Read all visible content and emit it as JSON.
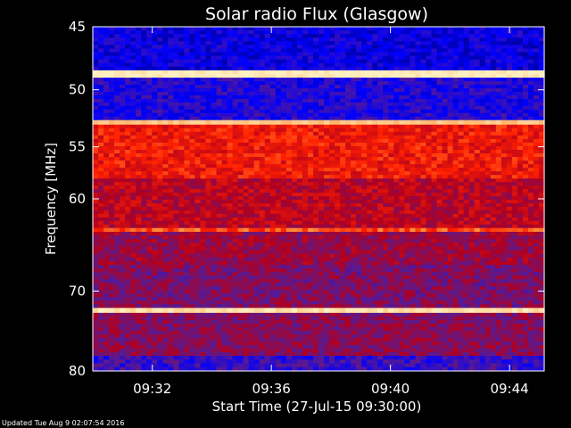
{
  "chart_data": {
    "type": "heatmap",
    "title": "Solar radio Flux (Glasgow)",
    "xlabel": "Start Time (27-Jul-15 09:30:00)",
    "ylabel": "Frequency [MHz]",
    "x_ticks": [
      "09:32",
      "09:36",
      "09:40",
      "09:44"
    ],
    "y_ticks": [
      "45",
      "50",
      "55",
      "60",
      "70",
      "80"
    ],
    "xlim": [
      "09:30:00",
      "09:45:10"
    ],
    "ylim_mhz": [
      45,
      80
    ],
    "y_scale": "log",
    "colormap": [
      "#000060",
      "#0000ff",
      "#5a1a90",
      "#b00020",
      "#ff2000",
      "#ff9a40",
      "#fff0c0"
    ],
    "bands": [
      {
        "from": 45,
        "to": 48.4,
        "level": 1
      },
      {
        "from": 48.4,
        "to": 49.0,
        "level": 6
      },
      {
        "from": 49.0,
        "to": 52.6,
        "level": 1.3
      },
      {
        "from": 52.6,
        "to": 53.0,
        "level": 5.5
      },
      {
        "from": 53.0,
        "to": 58.0,
        "level": 3.8
      },
      {
        "from": 58.0,
        "to": 63.0,
        "level": 3.1
      },
      {
        "from": 63.0,
        "to": 63.4,
        "level": 4.4
      },
      {
        "from": 63.4,
        "to": 67.0,
        "level": 2.7
      },
      {
        "from": 67.0,
        "to": 72.0,
        "level": 2.4
      },
      {
        "from": 72.0,
        "to": 72.6,
        "level": 5.8
      },
      {
        "from": 72.6,
        "to": 78.0,
        "level": 2.5
      },
      {
        "from": 78.0,
        "to": 80.0,
        "level": 1.6
      }
    ]
  },
  "footer": "Updated Tue Aug  9 02:07:54 2016"
}
